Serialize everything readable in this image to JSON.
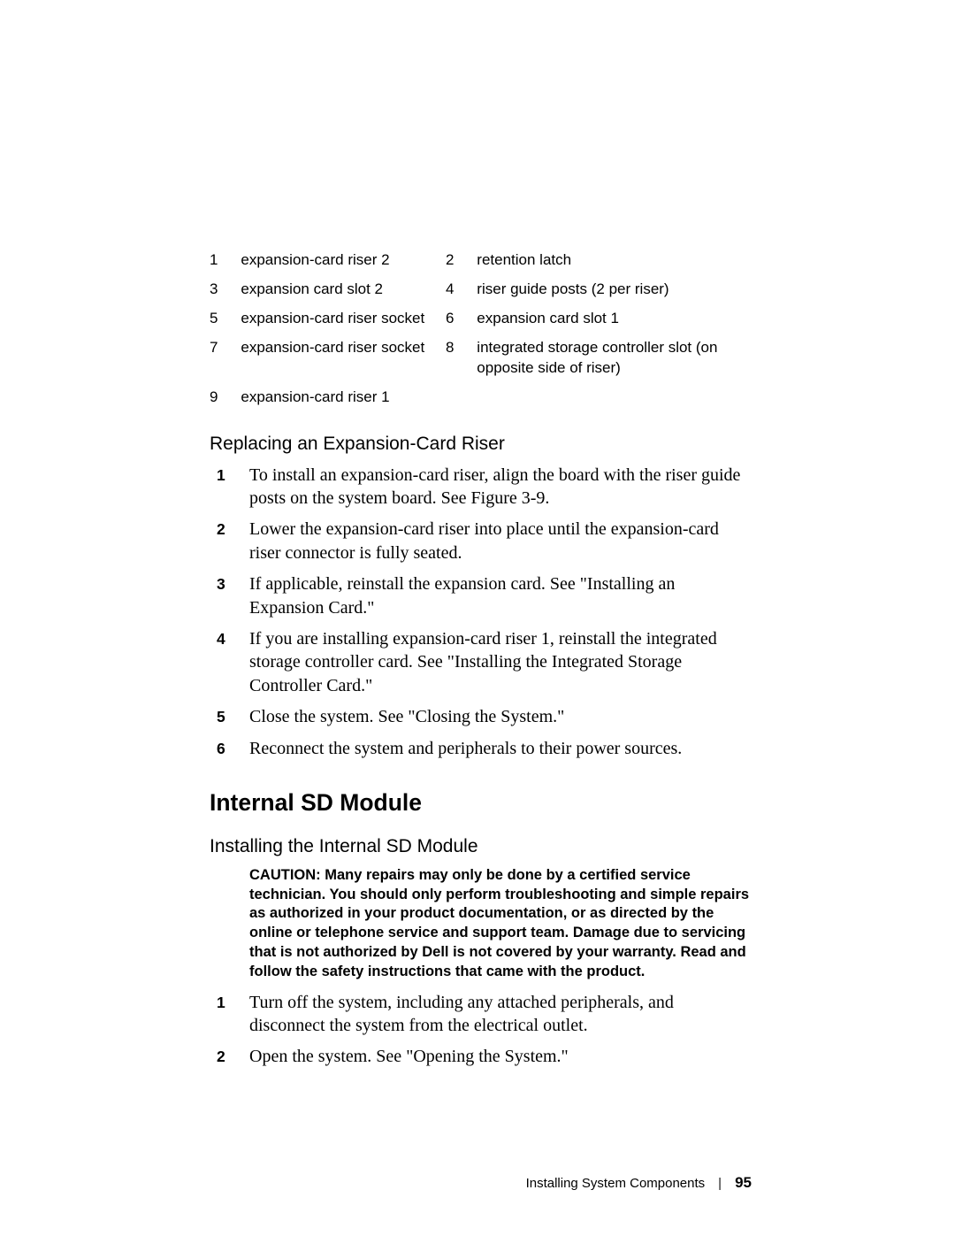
{
  "legend": {
    "rows": [
      {
        "ln": "1",
        "lt": "expansion-card riser 2",
        "rn": "2",
        "rt": "retention latch"
      },
      {
        "ln": "3",
        "lt": "expansion card slot 2",
        "rn": "4",
        "rt": "riser guide posts (2 per riser)"
      },
      {
        "ln": "5",
        "lt": "expansion-card riser socket",
        "rn": "6",
        "rt": "expansion card slot 1"
      },
      {
        "ln": "7",
        "lt": "expansion-card riser socket",
        "rn": "8",
        "rt": "integrated storage controller slot (on opposite side of riser)"
      },
      {
        "ln": "9",
        "lt": "expansion-card riser 1",
        "rn": "",
        "rt": ""
      }
    ]
  },
  "subheading1": "Replacing an Expansion-Card Riser",
  "proc1": [
    "To install an expansion-card riser, align the board with the riser guide posts on the system board. See Figure 3-9.",
    "Lower the expansion-card riser into place until the expansion-card riser connector is fully seated.",
    "If applicable, reinstall the expansion card. See \"Installing an Expansion Card.\"",
    "If you are installing expansion-card riser 1, reinstall the integrated storage controller card. See \"Installing the Integrated Storage Controller Card.\"",
    "Close the system. See \"Closing the System.\"",
    "Reconnect the system and peripherals to their power sources."
  ],
  "h2": "Internal SD Module",
  "subheading2": "Installing the Internal SD Module",
  "caution": "CAUTION: Many repairs may only be done by a certified service technician. You should only perform troubleshooting and simple repairs as authorized in your product documentation, or as directed by the online or telephone service and support team. Damage due to servicing that is not authorized by Dell is not covered by your warranty. Read and follow the safety instructions that came with the product.",
  "proc2": [
    "Turn off the system, including any attached peripherals, and disconnect the system from the electrical outlet.",
    "Open the system. See \"Opening the System.\""
  ],
  "footer": {
    "section": "Installing System Components",
    "page": "95"
  }
}
